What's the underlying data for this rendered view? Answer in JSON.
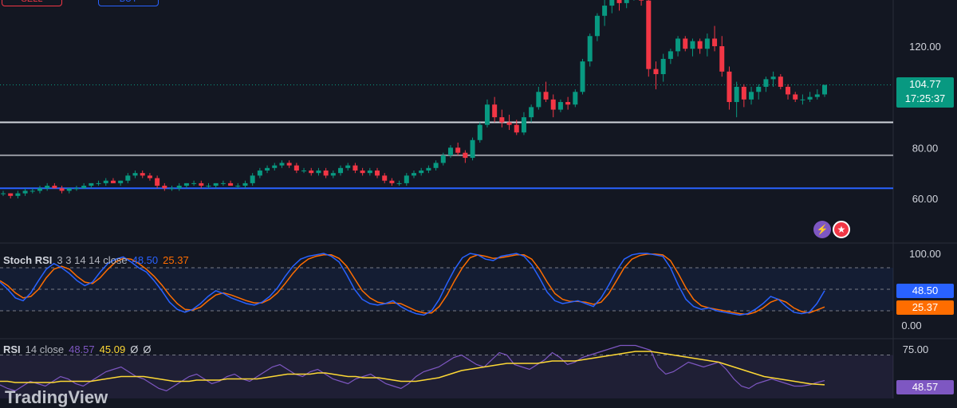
{
  "toolbar": {
    "sell_label": "SELL",
    "buy_label": "BUY"
  },
  "price_pane": {
    "axis_ticks": [
      "120.00",
      "80.00",
      "60.00"
    ],
    "axis_tick_values": [
      120,
      80,
      60
    ],
    "last_price": "104.77",
    "countdown": "17:25:37",
    "last_price_value": 104.77,
    "horizontal_levels": [
      {
        "value": 90,
        "color": "#d1d4dc"
      },
      {
        "value": 77,
        "color": "#9598a1"
      },
      {
        "value": 64,
        "color": "#2962ff"
      }
    ],
    "up_color": "#089981",
    "down_color": "#f23645"
  },
  "stoch_rsi": {
    "title": "Stoch RSI",
    "params": "3 3 14 14 close",
    "k_value": "48.50",
    "d_value": "25.37",
    "ticks": [
      "100.00",
      "0.00"
    ],
    "k_color": "#2962ff",
    "d_color": "#ff6d00"
  },
  "rsi": {
    "title": "RSI",
    "params": "14 close",
    "value": "48.57",
    "ma_value": "45.09",
    "extra1": "Ø",
    "extra2": "Ø",
    "ticks": [
      "75.00"
    ],
    "line_color": "#7e57c2",
    "ma_color": "#fdd835"
  },
  "watermark": "TradingView",
  "icons": [
    "lightning-icon",
    "us-flag-icon"
  ],
  "chart_data": {
    "type": "candlestick",
    "ylim": [
      50,
      145
    ],
    "candles": [
      [
        62,
        63,
        61,
        62
      ],
      [
        62,
        62,
        60,
        61
      ],
      [
        61,
        63,
        60,
        62
      ],
      [
        62,
        64,
        61,
        63
      ],
      [
        63,
        64,
        62,
        63
      ],
      [
        63,
        65,
        62,
        64
      ],
      [
        64,
        66,
        63,
        65
      ],
      [
        65,
        66,
        64,
        64
      ],
      [
        64,
        65,
        62,
        63
      ],
      [
        63,
        64,
        62,
        64
      ],
      [
        64,
        65,
        63,
        64
      ],
      [
        64,
        66,
        64,
        65
      ],
      [
        65,
        66,
        64,
        66
      ],
      [
        66,
        67,
        65,
        66
      ],
      [
        66,
        68,
        65,
        67
      ],
      [
        67,
        68,
        66,
        66
      ],
      [
        66,
        67,
        65,
        67
      ],
      [
        67,
        70,
        66,
        69
      ],
      [
        69,
        71,
        68,
        70
      ],
      [
        70,
        71,
        68,
        69
      ],
      [
        69,
        70,
        67,
        68
      ],
      [
        68,
        69,
        64,
        65
      ],
      [
        65,
        66,
        63,
        64
      ],
      [
        64,
        65,
        63,
        64
      ],
      [
        64,
        66,
        63,
        65
      ],
      [
        65,
        66,
        64,
        66
      ],
      [
        66,
        67,
        65,
        66
      ],
      [
        66,
        67,
        64,
        65
      ],
      [
        65,
        66,
        64,
        65
      ],
      [
        65,
        66,
        64,
        66
      ],
      [
        66,
        67,
        65,
        66
      ],
      [
        66,
        67,
        65,
        65
      ],
      [
        65,
        66,
        64,
        65
      ],
      [
        65,
        67,
        64,
        66
      ],
      [
        66,
        70,
        65,
        69
      ],
      [
        69,
        72,
        68,
        71
      ],
      [
        71,
        73,
        70,
        72
      ],
      [
        72,
        74,
        71,
        73
      ],
      [
        73,
        75,
        72,
        74
      ],
      [
        74,
        75,
        72,
        73
      ],
      [
        73,
        74,
        70,
        71
      ],
      [
        71,
        72,
        70,
        71
      ],
      [
        71,
        72,
        69,
        70
      ],
      [
        70,
        72,
        69,
        71
      ],
      [
        71,
        72,
        68,
        69
      ],
      [
        69,
        71,
        68,
        70
      ],
      [
        70,
        73,
        69,
        72
      ],
      [
        72,
        74,
        71,
        73
      ],
      [
        73,
        74,
        70,
        71
      ],
      [
        71,
        72,
        69,
        70
      ],
      [
        70,
        72,
        69,
        71
      ],
      [
        71,
        72,
        68,
        69
      ],
      [
        69,
        70,
        66,
        67
      ],
      [
        67,
        68,
        65,
        66
      ],
      [
        66,
        67,
        65,
        66
      ],
      [
        66,
        70,
        65,
        69
      ],
      [
        69,
        71,
        68,
        70
      ],
      [
        70,
        72,
        69,
        71
      ],
      [
        71,
        73,
        70,
        72
      ],
      [
        72,
        75,
        71,
        74
      ],
      [
        74,
        78,
        73,
        77
      ],
      [
        77,
        81,
        76,
        80
      ],
      [
        80,
        82,
        77,
        78
      ],
      [
        78,
        79,
        74,
        76
      ],
      [
        76,
        84,
        75,
        83
      ],
      [
        83,
        90,
        82,
        89
      ],
      [
        89,
        99,
        88,
        97
      ],
      [
        97,
        100,
        90,
        92
      ],
      [
        92,
        95,
        88,
        90
      ],
      [
        90,
        93,
        87,
        89
      ],
      [
        89,
        91,
        85,
        86
      ],
      [
        86,
        94,
        85,
        92
      ],
      [
        92,
        97,
        90,
        96
      ],
      [
        96,
        104,
        95,
        102
      ],
      [
        102,
        106,
        98,
        99
      ],
      [
        99,
        101,
        92,
        95
      ],
      [
        95,
        99,
        94,
        98
      ],
      [
        98,
        100,
        95,
        97
      ],
      [
        97,
        103,
        96,
        102
      ],
      [
        102,
        115,
        101,
        114
      ],
      [
        114,
        125,
        112,
        124
      ],
      [
        124,
        133,
        122,
        132
      ],
      [
        132,
        139,
        128,
        136
      ],
      [
        136,
        141,
        133,
        139
      ],
      [
        139,
        142,
        134,
        137
      ],
      [
        137,
        141,
        135,
        140
      ],
      [
        140,
        142,
        138,
        141
      ],
      [
        141,
        142,
        136,
        138
      ],
      [
        138,
        139,
        108,
        111
      ],
      [
        111,
        114,
        103,
        109
      ],
      [
        109,
        117,
        106,
        115
      ],
      [
        115,
        119,
        113,
        118
      ],
      [
        118,
        124,
        116,
        123
      ],
      [
        123,
        124,
        118,
        119
      ],
      [
        119,
        123,
        116,
        122
      ],
      [
        122,
        123,
        117,
        119
      ],
      [
        119,
        125,
        116,
        123
      ],
      [
        123,
        128,
        118,
        120
      ],
      [
        120,
        124,
        108,
        110
      ],
      [
        110,
        112,
        95,
        98
      ],
      [
        98,
        106,
        92,
        104
      ],
      [
        104,
        105,
        96,
        99
      ],
      [
        99,
        104,
        97,
        102
      ],
      [
        102,
        105,
        99,
        104
      ],
      [
        104,
        108,
        102,
        107
      ],
      [
        107,
        110,
        104,
        108
      ],
      [
        108,
        109,
        103,
        104
      ],
      [
        104,
        105,
        99,
        101
      ],
      [
        101,
        102,
        98,
        99
      ],
      [
        99,
        101,
        97,
        99
      ],
      [
        99,
        102,
        98,
        100
      ],
      [
        100,
        103,
        99,
        101
      ],
      [
        101,
        104,
        100,
        104.77
      ]
    ],
    "stoch_k": [
      60,
      50,
      38,
      34,
      45,
      62,
      78,
      86,
      80,
      72,
      62,
      55,
      60,
      74,
      86,
      92,
      95,
      88,
      80,
      74,
      62,
      48,
      32,
      22,
      18,
      22,
      30,
      40,
      48,
      44,
      38,
      34,
      30,
      28,
      32,
      40,
      52,
      68,
      82,
      92,
      96,
      98,
      100,
      96,
      88,
      70,
      50,
      36,
      30,
      28,
      30,
      34,
      26,
      20,
      16,
      14,
      20,
      36,
      58,
      78,
      94,
      100,
      98,
      92,
      90,
      96,
      98,
      100,
      96,
      84,
      66,
      46,
      34,
      30,
      32,
      34,
      30,
      26,
      38,
      56,
      76,
      92,
      98,
      100,
      100,
      98,
      96,
      80,
      56,
      36,
      26,
      22,
      24,
      20,
      18,
      16,
      14,
      16,
      22,
      30,
      40,
      36,
      26,
      18,
      16,
      18,
      30,
      48
    ],
    "stoch_d": [
      62,
      55,
      45,
      38,
      40,
      50,
      66,
      78,
      82,
      78,
      68,
      60,
      58,
      66,
      78,
      88,
      93,
      92,
      86,
      78,
      68,
      56,
      42,
      30,
      22,
      21,
      25,
      34,
      42,
      45,
      42,
      38,
      34,
      31,
      31,
      36,
      45,
      58,
      72,
      84,
      92,
      96,
      98,
      98,
      93,
      82,
      65,
      48,
      38,
      32,
      30,
      31,
      30,
      25,
      20,
      17,
      17,
      26,
      42,
      62,
      80,
      94,
      98,
      96,
      93,
      94,
      96,
      98,
      98,
      92,
      78,
      60,
      44,
      36,
      33,
      33,
      32,
      29,
      32,
      44,
      62,
      80,
      92,
      97,
      99,
      99,
      98,
      90,
      72,
      52,
      36,
      27,
      24,
      22,
      20,
      18,
      16,
      15,
      18,
      24,
      32,
      36,
      32,
      24,
      19,
      17,
      21,
      25.37
    ],
    "rsi": [
      45,
      42,
      40,
      44,
      48,
      46,
      44,
      48,
      52,
      50,
      46,
      44,
      48,
      52,
      56,
      58,
      60,
      56,
      52,
      50,
      46,
      42,
      40,
      44,
      48,
      52,
      54,
      50,
      46,
      48,
      52,
      54,
      50,
      48,
      52,
      56,
      60,
      62,
      58,
      54,
      52,
      56,
      58,
      54,
      50,
      48,
      46,
      50,
      52,
      54,
      50,
      46,
      44,
      42,
      46,
      52,
      56,
      58,
      60,
      64,
      68,
      70,
      66,
      62,
      60,
      66,
      72,
      70,
      62,
      60,
      58,
      62,
      66,
      72,
      68,
      62,
      64,
      68,
      70,
      72,
      74,
      76,
      78,
      78,
      78,
      76,
      74,
      60,
      54,
      56,
      60,
      64,
      62,
      60,
      62,
      64,
      58,
      50,
      44,
      42,
      46,
      48,
      50,
      48,
      46,
      44,
      44,
      45,
      47,
      48.57
    ],
    "rsi_ma": [
      48,
      48,
      47,
      47,
      47,
      47,
      47,
      47,
      48,
      48,
      48,
      48,
      48,
      49,
      50,
      51,
      52,
      52,
      52,
      52,
      51,
      50,
      49,
      48,
      48,
      48,
      49,
      49,
      49,
      49,
      50,
      50,
      50,
      50,
      50,
      51,
      52,
      53,
      54,
      54,
      54,
      54,
      55,
      55,
      54,
      53,
      52,
      52,
      51,
      51,
      51,
      50,
      49,
      48,
      48,
      48,
      49,
      50,
      51,
      53,
      55,
      57,
      58,
      59,
      60,
      61,
      62,
      63,
      63,
      63,
      63,
      63,
      64,
      65,
      65,
      65,
      65,
      66,
      67,
      68,
      69,
      70,
      71,
      72,
      73,
      73,
      73,
      72,
      71,
      70,
      69,
      68,
      67,
      66,
      65,
      64,
      62,
      60,
      58,
      56,
      54,
      52,
      51,
      50,
      49,
      48,
      47,
      46,
      45.5,
      45.09
    ]
  }
}
